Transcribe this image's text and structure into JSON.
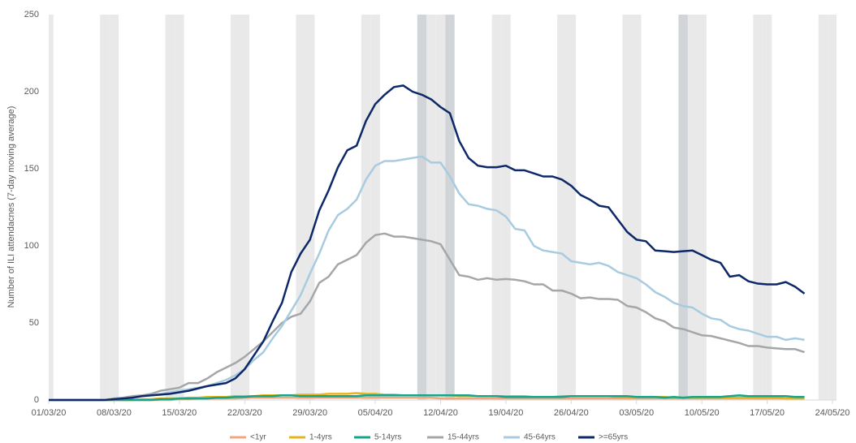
{
  "chart_data": {
    "type": "line",
    "y_label": "Number  of ILI attendacnes (7-day moving average)",
    "x": [
      "01/03/20",
      "02/03/20",
      "03/03/20",
      "04/03/20",
      "05/03/20",
      "06/03/20",
      "07/03/20",
      "08/03/20",
      "09/03/20",
      "10/03/20",
      "11/03/20",
      "12/03/20",
      "13/03/20",
      "14/03/20",
      "15/03/20",
      "16/03/20",
      "17/03/20",
      "18/03/20",
      "19/03/20",
      "20/03/20",
      "21/03/20",
      "22/03/20",
      "23/03/20",
      "24/03/20",
      "25/03/20",
      "26/03/20",
      "27/03/20",
      "28/03/20",
      "29/03/20",
      "30/03/20",
      "31/03/20",
      "01/04/20",
      "02/04/20",
      "03/04/20",
      "04/04/20",
      "05/04/20",
      "06/04/20",
      "07/04/20",
      "08/04/20",
      "09/04/20",
      "10/04/20",
      "11/04/20",
      "12/04/20",
      "13/04/20",
      "14/04/20",
      "15/04/20",
      "16/04/20",
      "17/04/20",
      "18/04/20",
      "19/04/20",
      "20/04/20",
      "21/04/20",
      "22/04/20",
      "23/04/20",
      "24/04/20",
      "25/04/20",
      "26/04/20",
      "27/04/20",
      "28/04/20",
      "29/04/20",
      "30/04/20",
      "01/05/20",
      "02/05/20",
      "03/05/20",
      "04/05/20",
      "05/05/20",
      "06/05/20",
      "07/05/20",
      "08/05/20",
      "09/05/20",
      "10/05/20",
      "11/05/20",
      "12/05/20",
      "13/05/20",
      "14/05/20",
      "15/05/20",
      "16/05/20",
      "17/05/20",
      "18/05/20",
      "19/05/20",
      "20/05/20",
      "21/05/20"
    ],
    "xlim": [
      "01/03/20",
      "24/05/20"
    ],
    "xticks": [
      "01/03/20",
      "08/03/20",
      "15/03/20",
      "22/03/20",
      "29/03/20",
      "05/04/20",
      "12/04/20",
      "19/04/20",
      "26/04/20",
      "03/05/20",
      "10/05/20",
      "17/05/20",
      "24/05/20"
    ],
    "ylim": [
      0,
      250
    ],
    "yticks": [
      0,
      50,
      100,
      150,
      200,
      250
    ],
    "series": [
      {
        "name": "<1yr",
        "color": "#f4a57c",
        "values": [
          0,
          0,
          0,
          0,
          0,
          0,
          0,
          0,
          0,
          0,
          0,
          0,
          0,
          0,
          0.5,
          0.5,
          1,
          1,
          1,
          1,
          1,
          1.5,
          1.5,
          1.5,
          1.5,
          1.5,
          1.5,
          1.5,
          1.5,
          1.5,
          1.5,
          1.5,
          1.5,
          1.5,
          1.5,
          1.5,
          1.5,
          1.5,
          1.5,
          1.5,
          1.5,
          1.5,
          1,
          1,
          1,
          1,
          1,
          1,
          1,
          1,
          1,
          1,
          1,
          1,
          1,
          1,
          1,
          1,
          1,
          1,
          1,
          1,
          1,
          1,
          1,
          1,
          1,
          1,
          1,
          1,
          1,
          1,
          1,
          1,
          1,
          1,
          1,
          1,
          1,
          1,
          1,
          1
        ]
      },
      {
        "name": "1-4yrs",
        "color": "#e8b41e",
        "values": [
          0,
          0,
          0,
          0,
          0,
          0,
          0,
          0,
          0,
          0,
          0.5,
          0.5,
          1,
          1,
          1,
          1.5,
          1.5,
          2,
          2,
          2,
          2.5,
          2.5,
          2.5,
          3,
          3,
          3,
          3,
          3.5,
          3.5,
          3.5,
          4,
          4,
          4,
          4.5,
          4,
          4,
          3.5,
          3.5,
          3,
          3,
          3,
          3,
          3,
          3,
          2.5,
          2.5,
          2.5,
          2.5,
          2.5,
          2.5,
          2.5,
          2.5,
          2,
          2,
          2,
          2.5,
          2.5,
          2.5,
          2.5,
          2.5,
          2.5,
          2,
          2,
          2,
          2,
          2,
          2,
          1.5,
          1.5,
          1.5,
          1.5,
          1.5,
          1.5,
          1.5,
          1.5,
          1.5,
          1.5,
          1.5,
          1.5,
          1,
          1,
          1
        ]
      },
      {
        "name": "5-14yrs",
        "color": "#15a58a",
        "values": [
          0,
          0,
          0,
          0,
          0,
          0,
          0,
          0,
          0,
          0,
          0,
          0,
          0.5,
          0.5,
          1,
          1,
          1,
          1,
          1.5,
          1.5,
          2,
          2,
          2.5,
          2.5,
          2.5,
          3,
          3,
          2.5,
          2.5,
          2.5,
          2.5,
          2.5,
          2.5,
          2.5,
          3,
          3,
          3,
          3,
          3,
          3,
          3,
          3,
          3,
          3,
          3,
          3,
          2.5,
          2.5,
          2.5,
          2,
          2,
          2,
          2,
          2,
          2,
          2,
          2.5,
          2.5,
          2.5,
          2.5,
          2.5,
          2.5,
          2.5,
          2,
          2,
          2,
          1.5,
          2,
          1.5,
          2,
          2,
          2,
          2,
          2.5,
          3,
          2.5,
          2.5,
          2.5,
          2.5,
          2.5,
          2,
          2
        ]
      },
      {
        "name": "15-44yrs",
        "color": "#a4a7aa",
        "values": [
          0,
          0,
          0,
          0,
          0,
          0,
          0,
          1,
          1.5,
          2.5,
          3,
          4,
          6,
          7,
          8,
          11,
          11,
          14,
          18,
          21,
          24,
          28,
          33,
          38,
          44,
          50,
          54,
          56,
          64,
          76,
          80,
          88,
          91,
          94,
          102,
          107,
          108,
          106,
          106,
          105,
          104,
          103,
          101,
          91,
          81,
          80,
          78,
          79,
          78,
          78.5,
          78,
          77,
          75,
          75,
          71,
          71,
          69,
          66,
          66.5,
          65.5,
          65.5,
          65,
          61,
          60,
          57,
          53,
          51,
          47,
          46,
          44,
          42,
          41.5,
          40,
          38.5,
          37,
          35,
          35,
          34,
          33.5,
          33,
          33,
          31
        ]
      },
      {
        "name": "45-64yrs",
        "color": "#a8cbe0",
        "values": [
          0,
          0,
          0,
          0,
          0,
          0,
          0,
          0.5,
          1,
          1.5,
          2.5,
          3,
          4,
          5,
          6,
          7,
          8,
          9,
          11,
          13,
          16,
          20,
          26,
          31,
          40,
          48,
          58,
          68,
          82,
          95,
          110,
          120,
          124,
          130,
          143,
          152,
          155,
          155,
          156,
          157,
          158,
          154,
          154,
          145,
          134,
          127,
          126,
          124,
          123,
          119,
          111,
          110,
          100,
          97,
          96,
          95,
          90,
          89,
          88,
          89,
          87,
          83,
          81,
          79,
          75,
          70,
          67,
          63,
          61,
          60,
          56,
          53,
          52,
          48,
          46,
          45,
          43,
          41,
          41,
          39,
          40,
          39
        ]
      },
      {
        "name": ">=65yrs",
        "color": "#0c2869",
        "values": [
          0,
          0,
          0,
          0,
          0,
          0,
          0,
          0.5,
          1,
          1.5,
          2.5,
          3,
          3.5,
          4,
          5,
          6,
          7.5,
          9,
          10,
          11,
          14,
          20,
          29,
          38,
          51,
          63,
          83,
          95,
          104,
          123,
          136,
          151,
          162,
          165,
          181,
          192,
          198,
          203,
          204,
          200,
          198,
          195,
          190,
          186,
          168,
          157,
          152,
          151,
          151,
          152,
          149,
          149,
          147,
          145,
          145,
          143,
          139,
          133,
          130,
          126,
          125,
          117,
          109,
          104,
          103,
          97,
          96.5,
          96,
          96.5,
          97,
          94,
          91,
          89,
          80,
          81,
          77,
          75.5,
          75,
          75,
          76.5,
          73.5,
          69
        ]
      }
    ]
  }
}
